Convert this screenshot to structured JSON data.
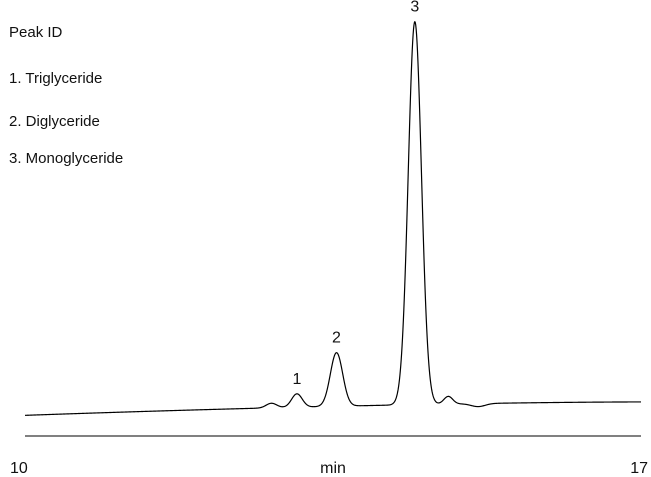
{
  "legend": {
    "title": "Peak ID",
    "items": [
      "1. Triglyceride",
      "2. Diglyceride",
      "3. Monoglyceride"
    ]
  },
  "chart_data": {
    "type": "line",
    "title": "",
    "xlabel": "min",
    "ylabel": "",
    "xlim": [
      10,
      17
    ],
    "x_ticks": [
      "10",
      "17"
    ],
    "grid": false,
    "legend_position": "top-left",
    "line_color": "#000000",
    "baseline": {
      "start_level": 0.02,
      "end_level": 0.055
    },
    "peaks": [
      {
        "label": "1",
        "name": "Triglyceride",
        "x": 13.09,
        "height": 0.035,
        "width": 0.06
      },
      {
        "label": "2",
        "name": "Diglyceride",
        "x": 13.54,
        "height": 0.14,
        "width": 0.07
      },
      {
        "label": "3",
        "name": "Monoglyceride",
        "x": 14.43,
        "height": 1.0,
        "width": 0.075
      }
    ],
    "minor_features": [
      {
        "x": 12.8,
        "height": 0.012,
        "width": 0.06
      },
      {
        "x": 14.81,
        "height": 0.02,
        "width": 0.05
      }
    ]
  }
}
